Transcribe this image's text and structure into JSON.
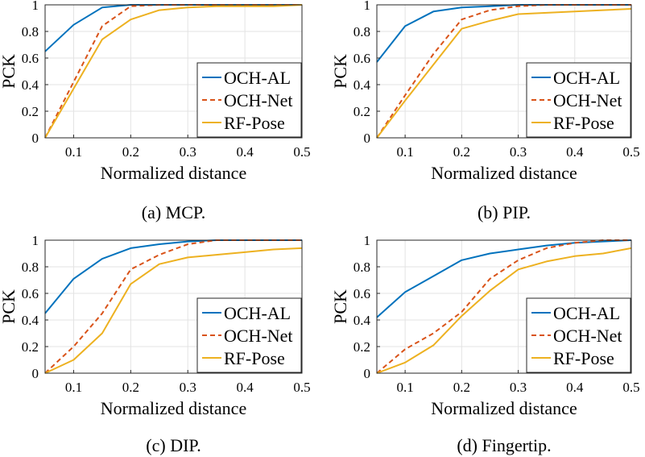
{
  "chart_data": [
    {
      "type": "line",
      "caption": "(a) MCP.",
      "xlabel": "Normalized distance",
      "ylabel": "PCK",
      "xlim": [
        0.05,
        0.5
      ],
      "ylim": [
        0,
        1
      ],
      "xticks": [
        "0.1",
        "0.2",
        "0.3",
        "0.4",
        "0.5"
      ],
      "yticks": [
        "0",
        "0.2",
        "0.4",
        "0.6",
        "0.8",
        "1"
      ],
      "grid": true,
      "legend_position": "bottom-right",
      "x": [
        0.05,
        0.1,
        0.15,
        0.2,
        0.25,
        0.3,
        0.35,
        0.4,
        0.45,
        0.5
      ],
      "series": [
        {
          "name": "OCH-AL",
          "color": "#0072BD",
          "dash": "solid",
          "values": [
            0.65,
            0.85,
            0.98,
            1.0,
            1.0,
            1.0,
            1.0,
            1.0,
            1.0,
            1.0
          ]
        },
        {
          "name": "OCH-Net",
          "color": "#D95319",
          "dash": "dashed",
          "values": [
            0.0,
            0.42,
            0.84,
            0.99,
            1.0,
            1.0,
            1.0,
            1.0,
            1.0,
            1.0
          ]
        },
        {
          "name": "RF-Pose",
          "color": "#EDB120",
          "dash": "solid",
          "values": [
            0.0,
            0.37,
            0.74,
            0.89,
            0.96,
            0.98,
            0.99,
            0.99,
            0.99,
            1.0
          ]
        }
      ]
    },
    {
      "type": "line",
      "caption": "(b) PIP.",
      "xlabel": "Normalized distance",
      "ylabel": "PCK",
      "xlim": [
        0.05,
        0.5
      ],
      "ylim": [
        0,
        1
      ],
      "xticks": [
        "0.1",
        "0.2",
        "0.3",
        "0.4",
        "0.5"
      ],
      "yticks": [
        "0",
        "0.2",
        "0.4",
        "0.6",
        "0.8",
        "1"
      ],
      "grid": true,
      "legend_position": "bottom-right",
      "x": [
        0.05,
        0.1,
        0.15,
        0.2,
        0.25,
        0.3,
        0.35,
        0.4,
        0.45,
        0.5
      ],
      "series": [
        {
          "name": "OCH-AL",
          "color": "#0072BD",
          "dash": "solid",
          "values": [
            0.57,
            0.84,
            0.95,
            0.98,
            0.99,
            1.0,
            1.0,
            1.0,
            1.0,
            1.0
          ]
        },
        {
          "name": "OCH-Net",
          "color": "#D95319",
          "dash": "dashed",
          "values": [
            0.0,
            0.32,
            0.63,
            0.89,
            0.96,
            0.99,
            1.0,
            1.0,
            1.0,
            1.0
          ]
        },
        {
          "name": "RF-Pose",
          "color": "#EDB120",
          "dash": "solid",
          "values": [
            0.0,
            0.28,
            0.55,
            0.82,
            0.88,
            0.93,
            0.94,
            0.95,
            0.96,
            0.97
          ]
        }
      ]
    },
    {
      "type": "line",
      "caption": "(c) DIP.",
      "xlabel": "Normalized distance",
      "ylabel": "PCK",
      "xlim": [
        0.05,
        0.5
      ],
      "ylim": [
        0,
        1
      ],
      "xticks": [
        "0.1",
        "0.2",
        "0.3",
        "0.4",
        "0.5"
      ],
      "yticks": [
        "0",
        "0.2",
        "0.4",
        "0.6",
        "0.8",
        "1"
      ],
      "grid": true,
      "legend_position": "bottom-right",
      "x": [
        0.05,
        0.1,
        0.15,
        0.2,
        0.25,
        0.3,
        0.35,
        0.4,
        0.45,
        0.5
      ],
      "series": [
        {
          "name": "OCH-AL",
          "color": "#0072BD",
          "dash": "solid",
          "values": [
            0.45,
            0.71,
            0.86,
            0.94,
            0.97,
            0.99,
            1.0,
            1.0,
            1.0,
            1.0
          ]
        },
        {
          "name": "OCH-Net",
          "color": "#D95319",
          "dash": "dashed",
          "values": [
            0.0,
            0.2,
            0.45,
            0.78,
            0.89,
            0.97,
            1.0,
            1.0,
            1.0,
            1.0
          ]
        },
        {
          "name": "RF-Pose",
          "color": "#EDB120",
          "dash": "solid",
          "values": [
            0.0,
            0.1,
            0.3,
            0.67,
            0.82,
            0.87,
            0.89,
            0.91,
            0.93,
            0.94
          ]
        }
      ]
    },
    {
      "type": "line",
      "caption": "(d) Fingertip.",
      "xlabel": "Normalized distance",
      "ylabel": "PCK",
      "xlim": [
        0.05,
        0.5
      ],
      "ylim": [
        0,
        1
      ],
      "xticks": [
        "0.1",
        "0.2",
        "0.3",
        "0.4",
        "0.5"
      ],
      "yticks": [
        "0",
        "0.2",
        "0.4",
        "0.6",
        "0.8",
        "1"
      ],
      "grid": true,
      "legend_position": "bottom-right",
      "x": [
        0.05,
        0.1,
        0.15,
        0.2,
        0.25,
        0.3,
        0.35,
        0.4,
        0.45,
        0.5
      ],
      "series": [
        {
          "name": "OCH-AL",
          "color": "#0072BD",
          "dash": "solid",
          "values": [
            0.42,
            0.61,
            0.73,
            0.85,
            0.9,
            0.93,
            0.96,
            0.98,
            0.99,
            1.0
          ]
        },
        {
          "name": "OCH-Net",
          "color": "#D95319",
          "dash": "dashed",
          "values": [
            0.0,
            0.18,
            0.3,
            0.46,
            0.71,
            0.85,
            0.94,
            0.98,
            1.0,
            1.0
          ]
        },
        {
          "name": "RF-Pose",
          "color": "#EDB120",
          "dash": "solid",
          "values": [
            0.0,
            0.08,
            0.21,
            0.43,
            0.62,
            0.78,
            0.84,
            0.88,
            0.9,
            0.94
          ]
        }
      ]
    }
  ]
}
